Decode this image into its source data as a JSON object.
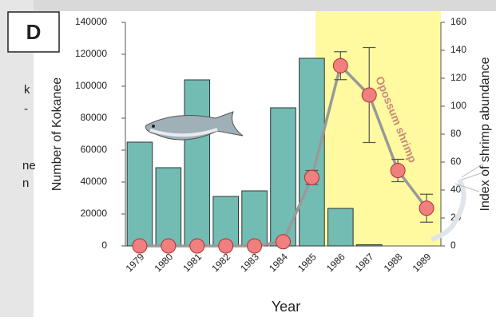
{
  "side_text": [
    "k",
    "-",
    "ne",
    "n"
  ],
  "chart_data": {
    "type": "bar_line",
    "panel_label": "D",
    "xlabel": "Year",
    "ylabel": "Number of Kokanee",
    "y2label": "Index of shrimp abundance",
    "annotation": "Opossum shrimp",
    "categories": [
      "1979",
      "1980",
      "1981",
      "1982",
      "1983",
      "1984",
      "1985",
      "1986",
      "1987",
      "1988",
      "1989"
    ],
    "series": [
      {
        "name": "Kokanee",
        "type": "bar",
        "color": "#72bcb3",
        "values": [
          65000,
          49000,
          104000,
          31000,
          34500,
          86500,
          117500,
          23500,
          800,
          0,
          0
        ]
      },
      {
        "name": "Opossum shrimp",
        "type": "line",
        "axis": "y2",
        "color": "#f08080",
        "values": [
          0,
          0,
          0,
          0,
          0,
          3,
          49,
          129,
          108,
          54,
          27
        ],
        "errors": [
          null,
          null,
          null,
          null,
          null,
          null,
          5,
          10,
          34,
          8,
          10
        ]
      }
    ],
    "ylim": [
      0,
      140000
    ],
    "yticks": [
      0,
      20000,
      40000,
      60000,
      80000,
      100000,
      120000,
      140000
    ],
    "y2lim": [
      0,
      160
    ],
    "y2ticks": [
      0,
      20,
      40,
      60,
      80,
      100,
      120,
      140,
      160
    ]
  }
}
